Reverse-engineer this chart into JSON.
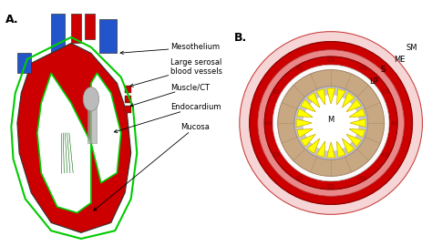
{
  "title_A": "A.",
  "title_B": "B.",
  "bg_color": "#ffffff",
  "heart_red": "#cc0000",
  "heart_blue": "#2255cc",
  "heart_light": "#ffffff",
  "green_line": "#00cc00",
  "dark_red": "#8b0000",
  "tan": "#c8a882",
  "yellow": "#ffff00",
  "yellow_dark": "#ccaa00",
  "pink_light": "#f0c8c8",
  "labels_A": [
    "Mesothelium",
    "Large serosal\nblood vessels",
    "Muscle/CT",
    "Endocardium",
    "Mucosa"
  ],
  "labels_B": [
    "SM",
    "ME",
    "S",
    "LP",
    "M"
  ],
  "label_fontsize": 7
}
